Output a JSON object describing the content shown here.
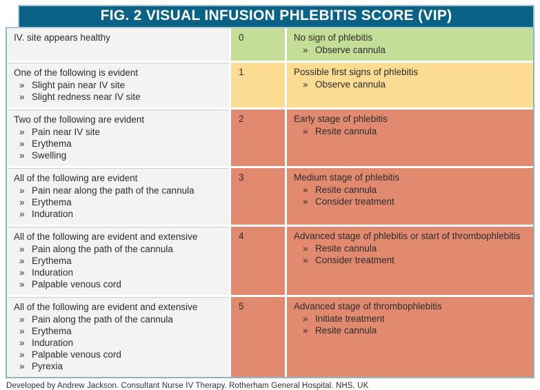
{
  "title": "FIG. 2 VISUAL INFUSION PHLEBITIS SCORE (VIP)",
  "bullet_marker": "»",
  "colors": {
    "header_bg": "#0a6286",
    "header_text": "#ffffff",
    "border": "#8fb3c0",
    "criteria_bg": "#f2f4f3",
    "score_0_green": "#c5de97",
    "score_1_yellow": "#fbdc92",
    "score_2_5_red": "#e28a70",
    "body_text": "#2b2b2b"
  },
  "rows": [
    {
      "score": "0",
      "criteria": {
        "heading": "IV. site appears healthy",
        "items": []
      },
      "assessment": {
        "heading": "No sign of phlebitis",
        "actions": [
          "Observe cannula"
        ]
      }
    },
    {
      "score": "1",
      "criteria": {
        "heading": "One of the following is evident",
        "items": [
          "Slight pain near IV site",
          "Slight redness near IV site"
        ]
      },
      "assessment": {
        "heading": "Possible first signs of phlebitis",
        "actions": [
          "Observe cannula"
        ]
      }
    },
    {
      "score": "2",
      "criteria": {
        "heading": "Two of the following are evident",
        "items": [
          "Pain near IV site",
          "Erythema",
          "Swelling"
        ]
      },
      "assessment": {
        "heading": "Early stage of phlebitis",
        "actions": [
          "Resite cannula"
        ]
      }
    },
    {
      "score": "3",
      "criteria": {
        "heading": "All of the following are evident",
        "items": [
          "Pain near along the path of the cannula",
          "Erythema",
          "Induration"
        ]
      },
      "assessment": {
        "heading": "Medium stage of phlebitis",
        "actions": [
          "Resite cannula",
          "Consider treatment"
        ]
      }
    },
    {
      "score": "4",
      "criteria": {
        "heading": "All of the following are evident and extensive",
        "items": [
          "Pain along the path of the cannula",
          "Erythema",
          "Induration",
          "Palpable venous cord"
        ]
      },
      "assessment": {
        "heading": "Advanced stage of phlebitis or start of thrombophlebitis",
        "actions": [
          "Resite cannula",
          "Consider treatment"
        ]
      }
    },
    {
      "score": "5",
      "criteria": {
        "heading": "All of the following are evident and extensive",
        "items": [
          "Pain along the path of the cannula",
          "Erythema",
          "Induration",
          "Palpable venous cord",
          "Pyrexia"
        ]
      },
      "assessment": {
        "heading": "Advanced stage of thrombophlebitis",
        "actions": [
          "Initiate treatment",
          "Resite cannula"
        ]
      }
    }
  ],
  "footer": "Developed by Andrew Jackson. Consultant Nurse IV Therapy. Rotherham General Hospital. NHS. UK"
}
